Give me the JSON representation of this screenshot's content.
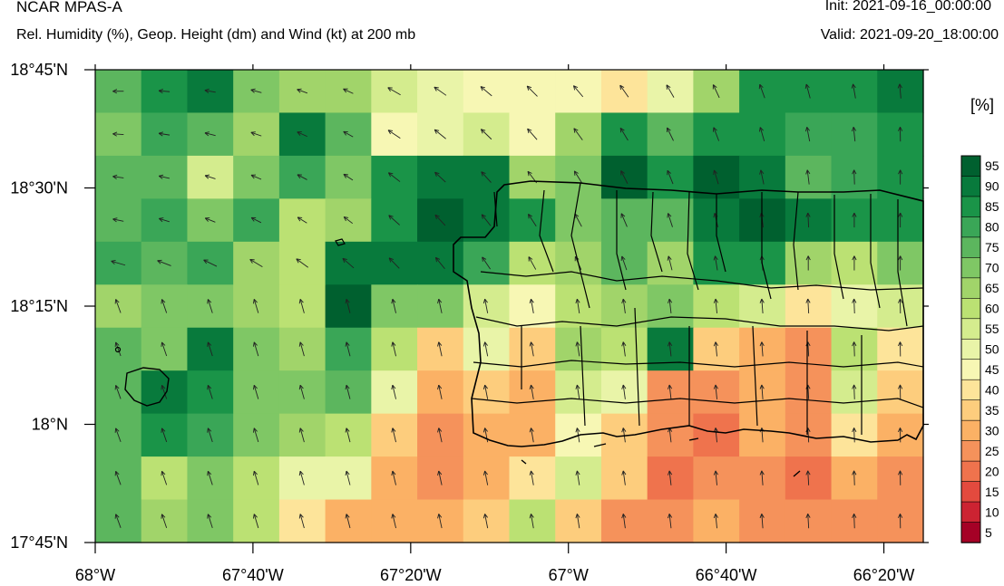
{
  "header": {
    "title": "NCAR MPAS-A",
    "subtitle": "Rel. Humidity (%), Geop. Height (dm) and Wind (kt) at 200 mb",
    "init": "Init: 2021-09-16_00:00:00",
    "valid": "Valid: 2021-09-20_18:00:00"
  },
  "map": {
    "lon_range": [
      -68.0,
      -66.25
    ],
    "lat_range": [
      17.75,
      18.75
    ],
    "lon_ticks": [
      -68.0,
      -67.6667,
      -67.3333,
      -67.0,
      -66.6667,
      -66.3333
    ],
    "lat_ticks": [
      18.75,
      18.5,
      18.25,
      18.0,
      17.75
    ],
    "x_tick_labels": [
      "68°W",
      "67°40'W",
      "67°20'W",
      "67°W",
      "66°40'W",
      "66°20'W"
    ],
    "y_tick_labels": [
      "18°45'N",
      "18°30'N",
      "18°15'N",
      "18°N",
      "17°45'N"
    ]
  },
  "colorbar": {
    "unit": "[%]",
    "labels": [
      "95",
      "90",
      "85",
      "80",
      "75",
      "70",
      "65",
      "60",
      "55",
      "50",
      "45",
      "40",
      "35",
      "30",
      "25",
      "20",
      "15",
      "10",
      "5"
    ],
    "colors": [
      "#00602f",
      "#087a3c",
      "#1a9448",
      "#3aa657",
      "#5cb65e",
      "#7fc765",
      "#a1d46a",
      "#bbe173",
      "#d4ec8e",
      "#e9f4a8",
      "#f7f7b4",
      "#fde49a",
      "#fdcd7d",
      "#fbb165",
      "#f5925b",
      "#ef734d",
      "#e34a3e",
      "#cc2332",
      "#a50126"
    ]
  },
  "chart_data": {
    "type": "heatmap",
    "title": "Rel. Humidity (%), Geop. Height (dm) and Wind (kt) at 200 mb",
    "xlabel": "",
    "ylabel": "",
    "unit": "%",
    "xlim": [
      -68.0,
      -66.25
    ],
    "ylim": [
      17.75,
      18.75
    ],
    "rh_grid_rows_north_to_south": [
      [
        78,
        85,
        92,
        70,
        68,
        65,
        58,
        50,
        48,
        48,
        48,
        40,
        52,
        68,
        85,
        88,
        88,
        90
      ],
      [
        70,
        80,
        75,
        65,
        90,
        75,
        48,
        52,
        58,
        48,
        65,
        88,
        78,
        88,
        88,
        80,
        80,
        85
      ],
      [
        75,
        75,
        58,
        70,
        80,
        70,
        88,
        92,
        90,
        65,
        70,
        95,
        88,
        95,
        90,
        78,
        80,
        85
      ],
      [
        75,
        80,
        70,
        82,
        60,
        68,
        88,
        95,
        92,
        85,
        72,
        75,
        78,
        90,
        95,
        90,
        85,
        85
      ],
      [
        80,
        75,
        80,
        68,
        60,
        90,
        90,
        92,
        80,
        62,
        65,
        75,
        68,
        88,
        85,
        65,
        60,
        72
      ],
      [
        65,
        72,
        72,
        65,
        62,
        97,
        70,
        72,
        55,
        45,
        62,
        68,
        72,
        60,
        55,
        42,
        50,
        55
      ],
      [
        75,
        72,
        90,
        70,
        65,
        80,
        62,
        38,
        50,
        38,
        68,
        62,
        90,
        35,
        30,
        25,
        60,
        40
      ],
      [
        75,
        92,
        88,
        70,
        70,
        75,
        50,
        32,
        35,
        30,
        55,
        50,
        28,
        25,
        32,
        28,
        58,
        35
      ],
      [
        75,
        88,
        80,
        72,
        68,
        60,
        38,
        28,
        32,
        30,
        48,
        38,
        28,
        22,
        30,
        25,
        40,
        30
      ],
      [
        75,
        62,
        72,
        62,
        50,
        50,
        32,
        28,
        30,
        42,
        55,
        38,
        22,
        28,
        28,
        22,
        30,
        28
      ],
      [
        75,
        65,
        70,
        60,
        40,
        30,
        30,
        32,
        35,
        60,
        38,
        25,
        28,
        30,
        25,
        28,
        25,
        28
      ]
    ],
    "wind_arrows": "light, directed north to northwest across the domain"
  }
}
